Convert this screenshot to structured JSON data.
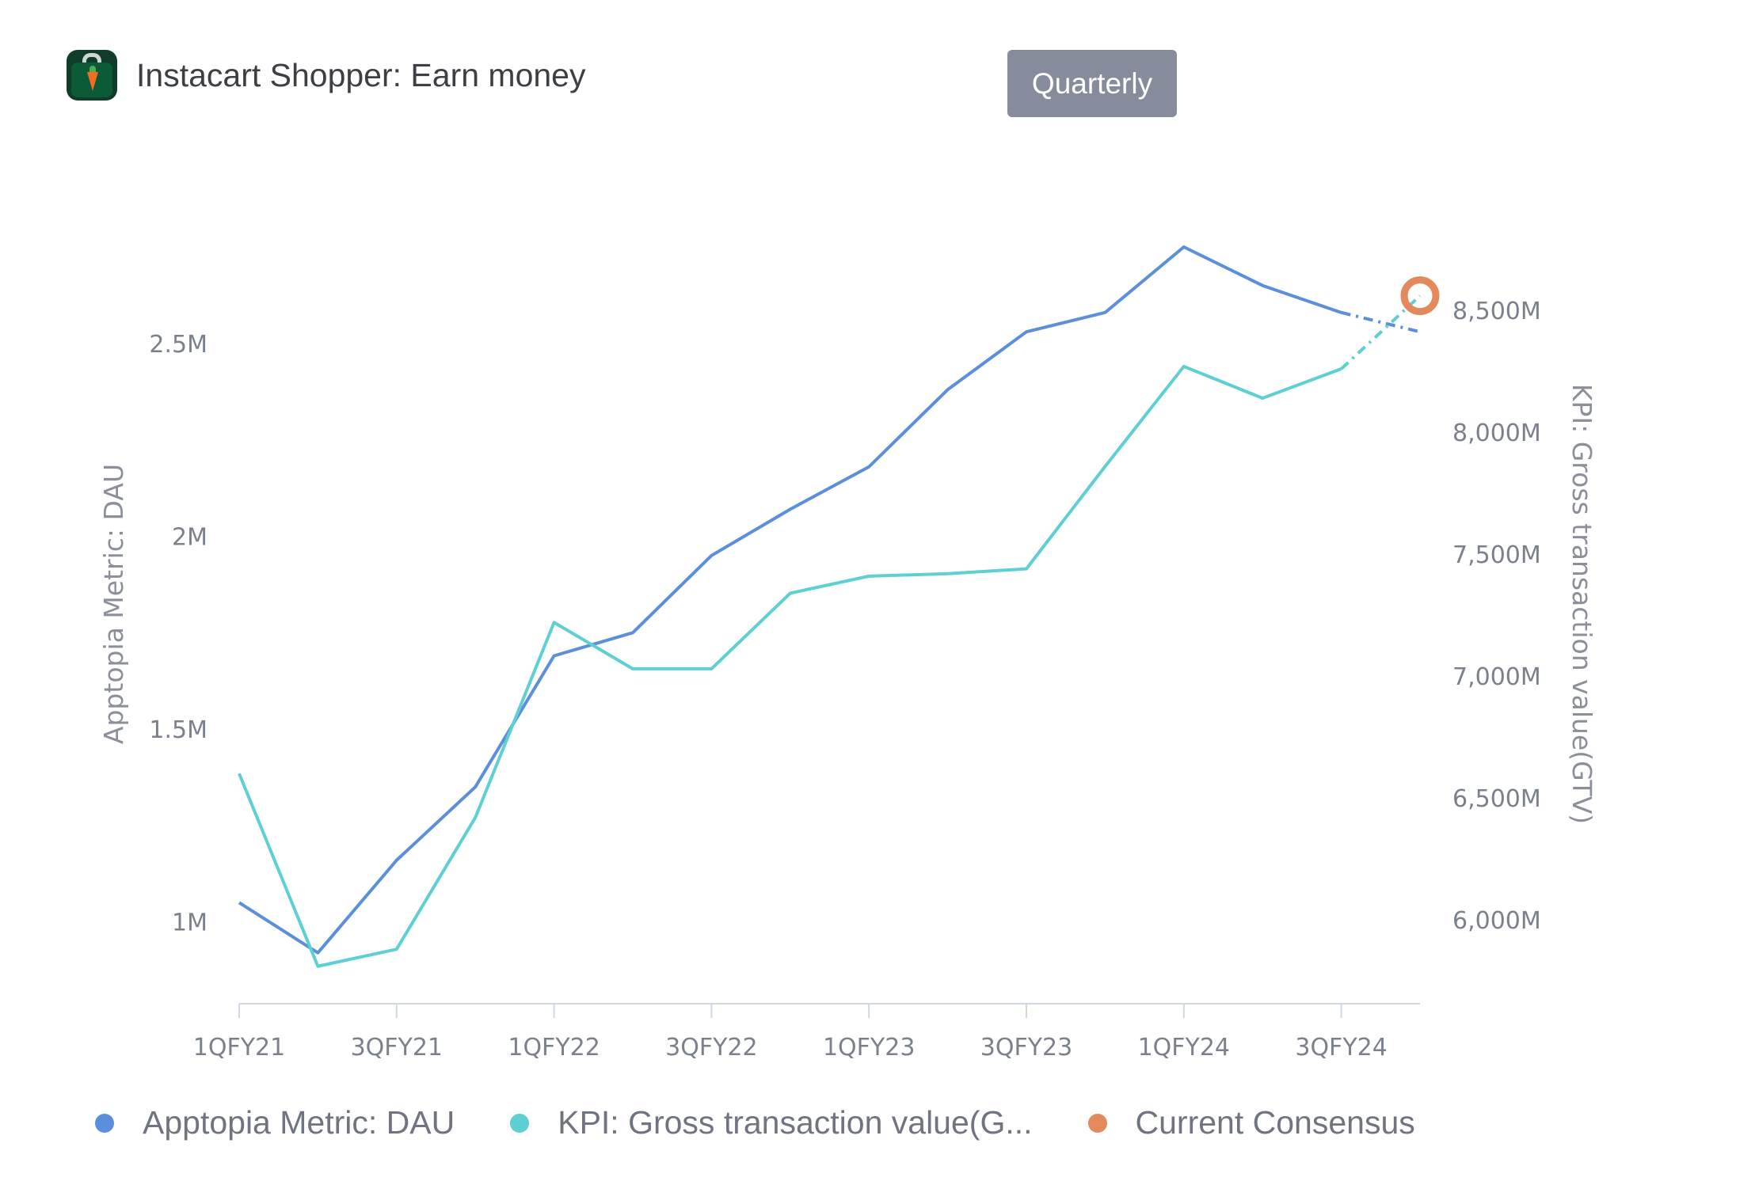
{
  "app": {
    "title": "Instacart Shopper: Earn money",
    "icon": "instacart-shopper-bag-icon"
  },
  "toolbar": {
    "period_label": "Quarterly"
  },
  "legend": [
    {
      "label": "Apptopia Metric: DAU",
      "color": "#5b8fdc"
    },
    {
      "label": "KPI: Gross transaction value(G...",
      "color": "#5ecfd2"
    },
    {
      "label": "Current Consensus",
      "color": "#e38a5c"
    }
  ],
  "chart_data": {
    "type": "line",
    "x_tick_labels": [
      "1QFY21",
      "3QFY21",
      "1QFY22",
      "3QFY22",
      "1QFY23",
      "3QFY23",
      "1QFY24",
      "3QFY24"
    ],
    "left_axis": {
      "label": "Apptopia Metric: DAU",
      "ticks": [
        "1M",
        "1.5M",
        "2M",
        "2.5M"
      ],
      "tick_values": [
        1.0,
        1.5,
        2.0,
        2.5
      ],
      "range": [
        0.825,
        2.75
      ]
    },
    "right_axis": {
      "label": "KPI: Gross transaction value(GTV)",
      "ticks": [
        "6,000M",
        "6,500M",
        "7,000M",
        "7,500M",
        "8,000M",
        "8,500M"
      ],
      "tick_values": [
        6000,
        6500,
        7000,
        7500,
        8000,
        8500
      ],
      "range": [
        5715,
        8760
      ]
    },
    "series": [
      {
        "name": "Apptopia Metric: DAU",
        "axis": "left",
        "color": "#5b8fdc",
        "values": [
          1.05,
          0.92,
          1.16,
          1.35,
          1.69,
          1.75,
          1.95,
          2.07,
          2.18,
          2.38,
          2.53,
          2.58,
          2.75,
          2.65,
          2.58
        ],
        "forecast": [
          2.58,
          2.53
        ]
      },
      {
        "name": "KPI: Gross transaction value(GTV)",
        "axis": "right",
        "color": "#5ecfd2",
        "values": [
          6600,
          5810,
          5880,
          6420,
          7220,
          7030,
          7030,
          7340,
          7410,
          7420,
          7440,
          7860,
          8270,
          8140,
          8260
        ],
        "forecast": [
          8260,
          8560
        ]
      },
      {
        "name": "Current Consensus",
        "axis": "right",
        "color": "#e38a5c",
        "values": [
          null,
          null,
          null,
          null,
          null,
          null,
          null,
          null,
          null,
          null,
          null,
          null,
          null,
          null,
          null,
          8560
        ]
      }
    ]
  }
}
